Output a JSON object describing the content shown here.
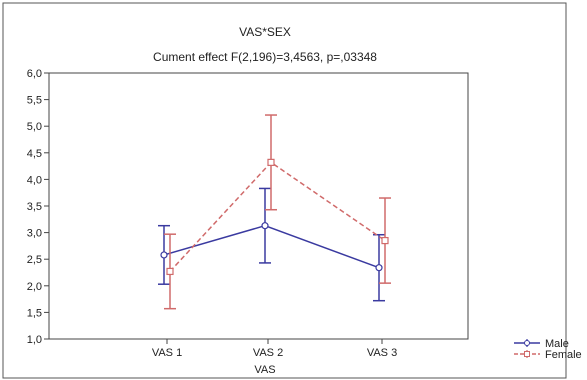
{
  "chart_data": {
    "type": "line",
    "title": "VAS*SEX",
    "subtitle": "Cument effect F(2,196)=3,4563, p=,03348",
    "xlabel": "VAS",
    "ylabel": "",
    "categories": [
      "VAS 1",
      "VAS 2",
      "VAS 3"
    ],
    "ylim": [
      1.0,
      6.0
    ],
    "yticks": [
      "1,0",
      "1,5",
      "2,0",
      "2,5",
      "3,0",
      "3,5",
      "4,0",
      "4,5",
      "5,0",
      "5,5",
      "6,0"
    ],
    "grid": false,
    "legend_position": "bottom-right",
    "series": [
      {
        "name": "Male",
        "color": "#3a3aa0",
        "line_style": "solid",
        "marker": "circle",
        "values": [
          2.58,
          3.13,
          2.34
        ],
        "lower": [
          2.03,
          2.43,
          1.72
        ],
        "upper": [
          3.13,
          3.83,
          2.96
        ]
      },
      {
        "name": "Female",
        "color": "#d06a6a",
        "line_style": "dashed",
        "marker": "square",
        "values": [
          2.27,
          4.32,
          2.85
        ],
        "lower": [
          1.57,
          3.43,
          2.05
        ],
        "upper": [
          2.97,
          5.21,
          3.65
        ]
      }
    ]
  }
}
